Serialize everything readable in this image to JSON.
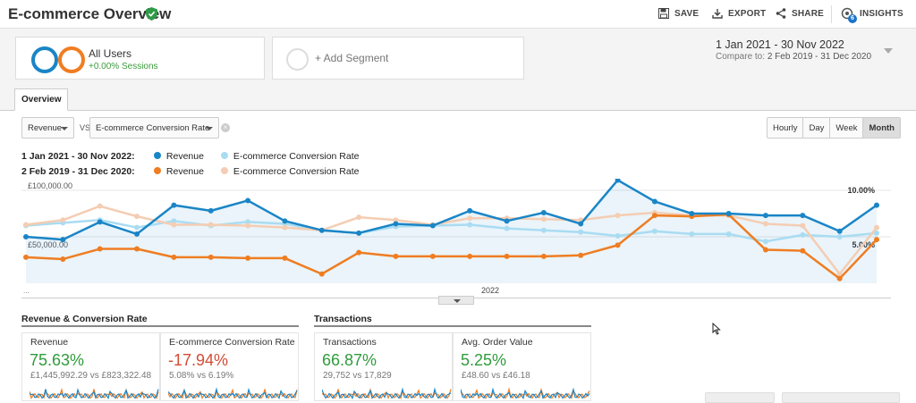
{
  "header": {
    "title": "E-commerce Overview",
    "actions": [
      {
        "label": "SAVE",
        "icon": "save-icon"
      },
      {
        "label": "EXPORT",
        "icon": "export-icon"
      },
      {
        "label": "SHARE",
        "icon": "share-icon"
      },
      {
        "label": "INSIGHTS",
        "icon": "insights-icon",
        "badge": "6"
      }
    ]
  },
  "segments": {
    "active": {
      "label": "All Users",
      "sub": "+0.00% Sessions"
    },
    "add_label": "+ Add Segment"
  },
  "date": {
    "range": "1 Jan 2021 - 30 Nov 2022",
    "compare_prefix": "Compare to:",
    "compare_range": "2 Feb 2019 - 31 Dec 2020"
  },
  "tabs": {
    "overview": "Overview"
  },
  "controls": {
    "metric1": "Revenue",
    "vs": "VS",
    "metric2": "E-commerce Conversion Rate",
    "granularity": [
      "Hourly",
      "Day",
      "Week",
      "Month"
    ],
    "active_granularity": "Month"
  },
  "legend": {
    "rows": [
      {
        "period": "1 Jan 2021 - 30 Nov 2022:",
        "items": [
          {
            "name": "Revenue",
            "color": "#1a85c6"
          },
          {
            "name": "E-commerce Conversion Rate",
            "color": "#a9dcf2"
          }
        ]
      },
      {
        "period": "2 Feb 2019 - 31 Dec 2020:",
        "items": [
          {
            "name": "Revenue",
            "color": "#ef7d22"
          },
          {
            "name": "E-commerce Conversion Rate",
            "color": "#f4cdb3"
          }
        ]
      }
    ]
  },
  "chart_data": {
    "type": "line",
    "left_axis_labels": [
      "£100,000.00",
      "£50,000.00"
    ],
    "right_axis_labels": [
      "10.00%",
      "5.00%"
    ],
    "left_ylim": [
      0,
      100000
    ],
    "right_ylim": [
      0,
      10
    ],
    "x_label": "2022",
    "x_start_label": "...",
    "grid": true,
    "series": [
      {
        "name": "Revenue",
        "period": "1 Jan 2021 - 30 Nov 2022",
        "axis": "left",
        "color": "#1a85c6",
        "fill": true,
        "values": [
          50000,
          47000,
          66000,
          53000,
          84000,
          78000,
          89000,
          67000,
          57000,
          54000,
          64000,
          62000,
          78000,
          67000,
          76000,
          64000,
          111000,
          88000,
          75000,
          75000,
          73000,
          73000,
          56000,
          84000
        ]
      },
      {
        "name": "E-commerce Conversion Rate",
        "period": "1 Jan 2021 - 30 Nov 2022",
        "axis": "right",
        "color": "#a9dcf2",
        "values": [
          6.2,
          6.5,
          6.8,
          6.0,
          6.7,
          6.2,
          6.6,
          6.4,
          5.7,
          5.4,
          6.1,
          6.2,
          6.3,
          5.9,
          5.7,
          5.5,
          5.1,
          5.6,
          5.3,
          5.3,
          4.5,
          5.2,
          5.0,
          5.4
        ]
      },
      {
        "name": "Revenue",
        "period": "2 Feb 2019 - 31 Dec 2020",
        "axis": "left",
        "color": "#ef7d22",
        "values": [
          28000,
          26000,
          37000,
          37000,
          28000,
          28000,
          27000,
          27000,
          10000,
          33000,
          29000,
          29000,
          29000,
          29000,
          29000,
          30000,
          41000,
          73000,
          72000,
          74000,
          36000,
          35000,
          5000,
          47000
        ]
      },
      {
        "name": "E-commerce Conversion Rate",
        "period": "2 Feb 2019 - 31 Dec 2020",
        "axis": "right",
        "color": "#f4cdb3",
        "values": [
          6.3,
          6.8,
          8.3,
          7.2,
          6.3,
          6.3,
          6.2,
          6.0,
          5.7,
          7.1,
          6.8,
          6.3,
          7.0,
          7.0,
          6.9,
          6.8,
          7.3,
          7.6,
          7.3,
          7.3,
          6.4,
          6.2,
          1.0,
          6.0
        ]
      }
    ]
  },
  "summary": {
    "revenue_section_title": "Revenue & Conversion Rate",
    "transactions_section_title": "Transactions",
    "cards": [
      {
        "label": "Revenue",
        "pct": "75.63%",
        "vs": "£1,445,992.29 vs £823,322.48",
        "dir": "up"
      },
      {
        "label": "E-commerce Conversion Rate",
        "pct": "-17.94%",
        "vs": "5.08% vs 6.19%",
        "dir": "down"
      },
      {
        "label": "Transactions",
        "pct": "66.87%",
        "vs": "29,752 vs 17,829",
        "dir": "up"
      },
      {
        "label": "Avg. Order Value",
        "pct": "5.25%",
        "vs": "£48.60 vs £46.18",
        "dir": "up"
      }
    ]
  }
}
